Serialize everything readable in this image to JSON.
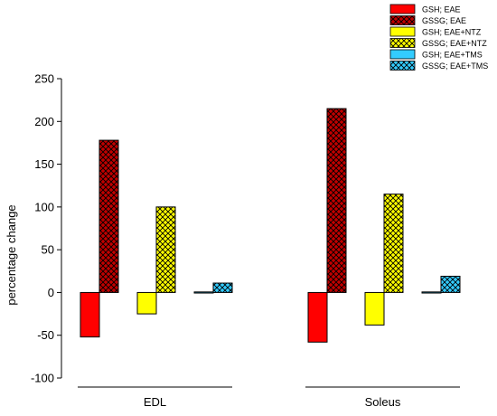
{
  "chart_data": {
    "type": "bar",
    "ylabel": "percentage change",
    "xlabel": "",
    "ylim": [
      -100,
      250
    ],
    "yticks": [
      -100,
      -50,
      0,
      50,
      100,
      150,
      200,
      250
    ],
    "categories": [
      "EDL",
      "Soleus"
    ],
    "grid": false,
    "legend_position": "top-right",
    "series": [
      {
        "name": "GSH; EAE",
        "values": [
          -52,
          -58
        ],
        "color": "#ff0000",
        "pattern": "solid"
      },
      {
        "name": "GSSG; EAE",
        "values": [
          178,
          215
        ],
        "color": "#c00000",
        "pattern": "crosshatch"
      },
      {
        "name": "GSH; EAE+NTZ",
        "values": [
          -25,
          -38
        ],
        "color": "#ffff00",
        "pattern": "solid"
      },
      {
        "name": "GSSG; EAE+NTZ",
        "values": [
          100,
          115
        ],
        "color": "#ffff00",
        "pattern": "crosshatch"
      },
      {
        "name": "GSH; EAE+TMS",
        "values": [
          -1,
          0
        ],
        "color": "#33ccff",
        "pattern": "solid"
      },
      {
        "name": "GSSG; EAE+TMS",
        "values": [
          11,
          19
        ],
        "color": "#33ccff",
        "pattern": "crosshatch"
      }
    ]
  }
}
